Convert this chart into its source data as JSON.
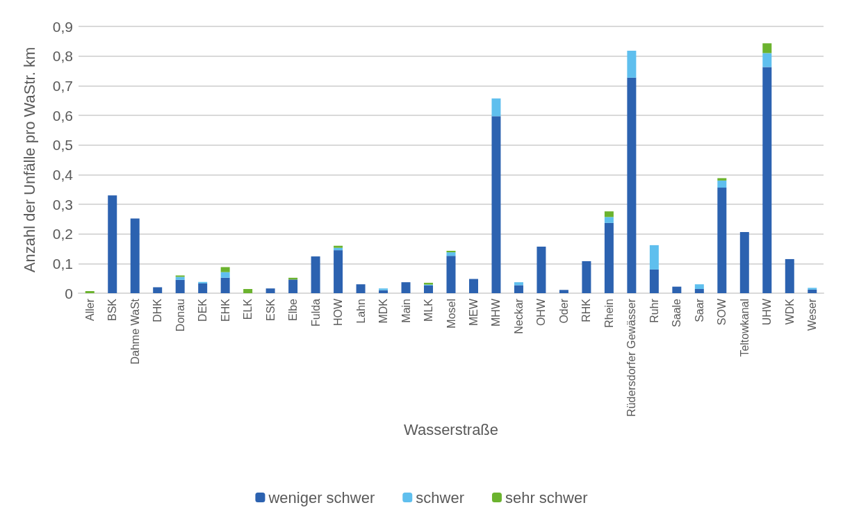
{
  "chart_data": {
    "type": "bar",
    "stacked": true,
    "xlabel": "Wasserstraße",
    "ylabel": "Anzahl der Unfälle pro WaStr. km",
    "categories": [
      "Aller",
      "BSK",
      "Dahme WaSt",
      "DHK",
      "Donau",
      "DEK",
      "EHK",
      "ELK",
      "ESK",
      "Elbe",
      "Fulda",
      "HOW",
      "Lahn",
      "MDK",
      "Main",
      "MLK",
      "Mosel",
      "MEW",
      "MHW",
      "Neckar",
      "OHW",
      "Oder",
      "RHK",
      "Rhein",
      "Rüdersdorfer Gewässer",
      "Ruhr",
      "Saale",
      "Saar",
      "SOW",
      "Teltowkanal",
      "UHW",
      "WDK",
      "Weser"
    ],
    "series": [
      {
        "name": "weniger schwer",
        "color": "#2c62b0",
        "values": [
          0,
          0.33,
          0.252,
          0.02,
          0.045,
          0.033,
          0.052,
          0,
          0.016,
          0.046,
          0.124,
          0.145,
          0.03,
          0.01,
          0.037,
          0.026,
          0.126,
          0.048,
          0.597,
          0.027,
          0.157,
          0.011,
          0.108,
          0.237,
          0.727,
          0.08,
          0.022,
          0.014,
          0.356,
          0.206,
          0.763,
          0.115,
          0.012
        ]
      },
      {
        "name": "schwer",
        "color": "#5fbfee",
        "values": [
          0,
          0,
          0,
          0,
          0.01,
          0.005,
          0.019,
          0,
          0,
          0,
          0,
          0.008,
          0,
          0.006,
          0,
          0.003,
          0.012,
          0,
          0.06,
          0.01,
          0,
          0,
          0,
          0.02,
          0.091,
          0.082,
          0,
          0.016,
          0.024,
          0,
          0.047,
          0,
          0.006
        ]
      },
      {
        "name": "sehr schwer",
        "color": "#6bb32e",
        "values": [
          0.007,
          0,
          0,
          0,
          0.005,
          0,
          0.017,
          0.014,
          0,
          0.006,
          0,
          0.007,
          0,
          0,
          0,
          0.006,
          0.005,
          0,
          0,
          0,
          0,
          0,
          0,
          0.019,
          0,
          0,
          0,
          0,
          0.008,
          0,
          0.033,
          0,
          0
        ]
      }
    ],
    "ylim": [
      0,
      0.9
    ],
    "yticks": [
      0,
      {
        "value": 0.1,
        "label": "0,1"
      },
      {
        "value": 0.2,
        "label": "0,2"
      },
      {
        "value": 0.3,
        "label": "0,3"
      },
      {
        "value": 0.4,
        "label": "0,4"
      },
      {
        "value": 0.5,
        "label": "0,5"
      },
      {
        "value": 0.6,
        "label": "0,6"
      },
      {
        "value": 0.7,
        "label": "0,7"
      },
      {
        "value": 0.8,
        "label": "0,8"
      },
      {
        "value": 0.9,
        "label": "0,9"
      }
    ],
    "grid": "y",
    "legend": "bottom"
  }
}
